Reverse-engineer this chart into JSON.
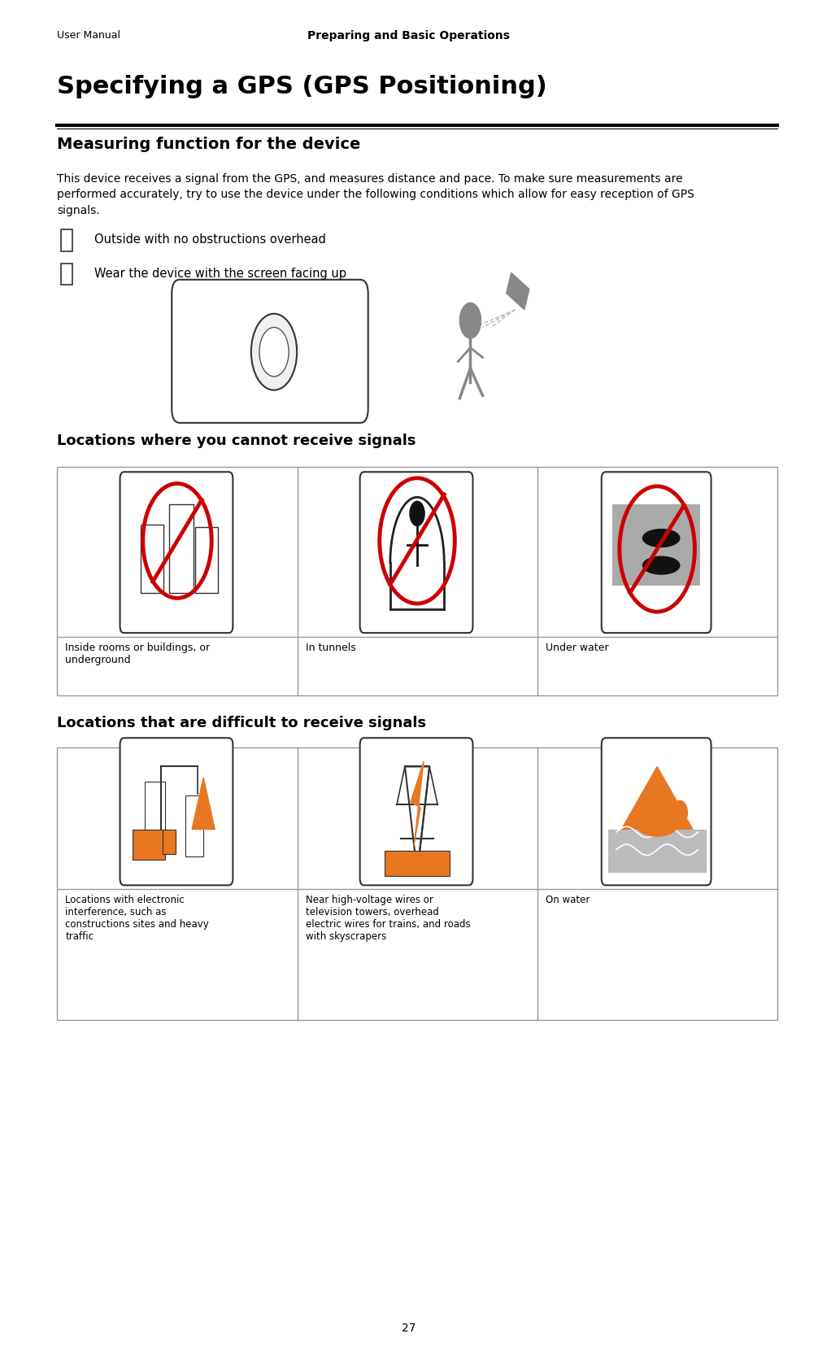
{
  "page_width": 10.06,
  "page_height": 16.77,
  "bg_color": "#ffffff",
  "header_left": "User Manual",
  "header_center": "Preparing and Basic Operations",
  "footer_center": "27",
  "title": "Specifying a GPS (GPS Positioning)",
  "section1_title": "Measuring function for the device",
  "body_text": "This device receives a signal from the GPS, and measures distance and pace. To make sure measurements are\nperformed accurately, try to use the device under the following conditions which allow for easy reception of GPS\nsignals.",
  "bullet1": "Outside with no obstructions overhead",
  "bullet2": "Wear the device with the screen facing up",
  "section2_title": "Locations where you cannot receive signals",
  "cannot_labels": [
    "Inside rooms or buildings, or\nunderground",
    "In tunnels",
    "Under water"
  ],
  "section3_title": "Locations that are difficult to receive signals",
  "difficult_labels": [
    "Locations with electronic\ninterference, such as\nconstructions sites and heavy\ntraffic",
    "Near high-voltage wires or\ntelevision towers, overhead\nelectric wires for trains, and roads\nwith skyscrapers",
    "On water"
  ],
  "title_fontsize": 22,
  "section_fontsize": 13,
  "body_fontsize": 10,
  "header_fontsize": 9,
  "cell_label_fontsize": 9,
  "table_border_color": "#999999",
  "red_color": "#cc0000",
  "orange_color": "#e87722",
  "gray_color": "#888888",
  "dark_gray": "#555555"
}
